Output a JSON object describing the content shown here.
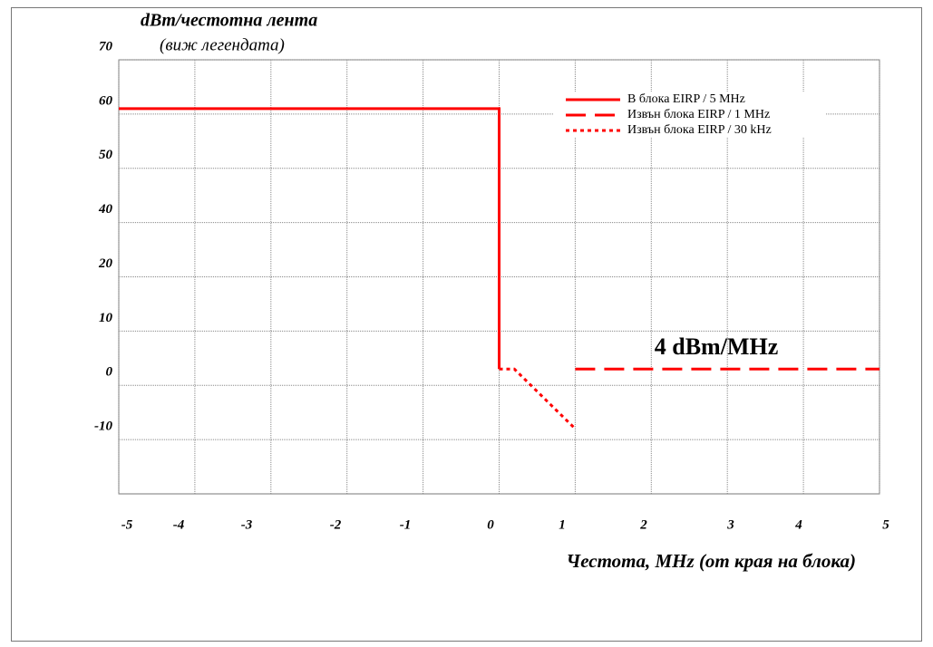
{
  "chart_data": {
    "type": "line",
    "title": "dBm/честотна лента",
    "subtitle": "(виж легендата)",
    "x_label": "Честота, MHz (от края на блока)",
    "annotation": "4 dBm/MHz",
    "xlim": [
      -5,
      5
    ],
    "xticks": [
      -5,
      -4,
      -3,
      -2,
      -1,
      0,
      1,
      2,
      3,
      4,
      5
    ],
    "ylim": [
      -20,
      70
    ],
    "yticks": [
      70,
      60,
      50,
      40,
      20,
      10,
      0,
      -10
    ],
    "grid": true,
    "legend": "upper right",
    "series": [
      {
        "name": "В блока EIRP / 5 MHz",
        "color": "#ff0000",
        "style": "solid",
        "x": [
          -5,
          0,
          0
        ],
        "values": [
          61,
          61,
          3
        ]
      },
      {
        "name": "Извън блока EIRP / 1 MHz",
        "color": "#ff0000",
        "style": "dashed",
        "x": [
          1,
          5
        ],
        "values": [
          3,
          3
        ]
      },
      {
        "name": "Извън блока EIRP / 30 kHz",
        "color": "#ff0000",
        "style": "dotted",
        "x": [
          0,
          0.2,
          1
        ],
        "values": [
          3,
          3,
          -8
        ]
      }
    ]
  }
}
